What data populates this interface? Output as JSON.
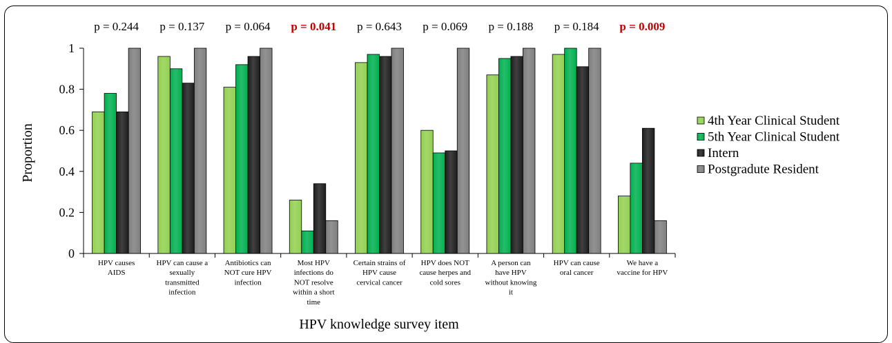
{
  "chart_data": {
    "type": "bar",
    "title": "",
    "xlabel": "HPV knowledge survey item",
    "ylabel": "Proportion",
    "ylim": [
      0,
      1
    ],
    "yticks": [
      "0",
      "0.2",
      "0.4",
      "0.6",
      "0.8",
      "1"
    ],
    "grid": false,
    "legend_position": "right",
    "categories": [
      [
        "HPV causes",
        "AIDS"
      ],
      [
        "HPV can cause a",
        "sexually",
        "transmitted",
        "infection"
      ],
      [
        "Antibiotics can",
        "NOT cure HPV",
        "infection"
      ],
      [
        "Most HPV",
        "infections do",
        "NOT resolve",
        "within a short",
        "time"
      ],
      [
        "Certain strains of",
        "HPV cause",
        "cervical cancer"
      ],
      [
        "HPV does NOT",
        "cause herpes and",
        "cold sores"
      ],
      [
        "A person can",
        "have HPV",
        "without knowing",
        "it"
      ],
      [
        "HPV can cause",
        "oral cancer"
      ],
      [
        "We have a",
        "vaccine for HPV"
      ]
    ],
    "p_values": [
      {
        "text": "p = 0.244",
        "significant": false
      },
      {
        "text": "p = 0.137",
        "significant": false
      },
      {
        "text": "p = 0.064",
        "significant": false
      },
      {
        "text": "p = 0.041",
        "significant": true
      },
      {
        "text": "p = 0.643",
        "significant": false
      },
      {
        "text": "p = 0.069",
        "significant": false
      },
      {
        "text": "p = 0.188",
        "significant": false
      },
      {
        "text": "p = 0.184",
        "significant": false
      },
      {
        "text": "p = 0.009",
        "significant": true
      }
    ],
    "series": [
      {
        "name": "4th Year Clinical Student",
        "color": "#92d050",
        "values": [
          0.69,
          0.96,
          0.81,
          0.26,
          0.93,
          0.6,
          0.87,
          0.97,
          0.28
        ]
      },
      {
        "name": "5th Year Clinical Student",
        "color": "#00b050",
        "values": [
          0.78,
          0.9,
          0.92,
          0.11,
          0.97,
          0.49,
          0.95,
          1.0,
          0.44
        ]
      },
      {
        "name": "Intern",
        "color": "#1e1e1e",
        "values": [
          0.69,
          0.83,
          0.96,
          0.34,
          0.96,
          0.5,
          0.96,
          0.91,
          0.61
        ]
      },
      {
        "name": "Postgradute Resident",
        "color": "#7f7f7f",
        "values": [
          1.0,
          1.0,
          1.0,
          0.16,
          1.0,
          1.0,
          1.0,
          1.0,
          0.16
        ]
      }
    ],
    "significant_color": "#c00000"
  }
}
